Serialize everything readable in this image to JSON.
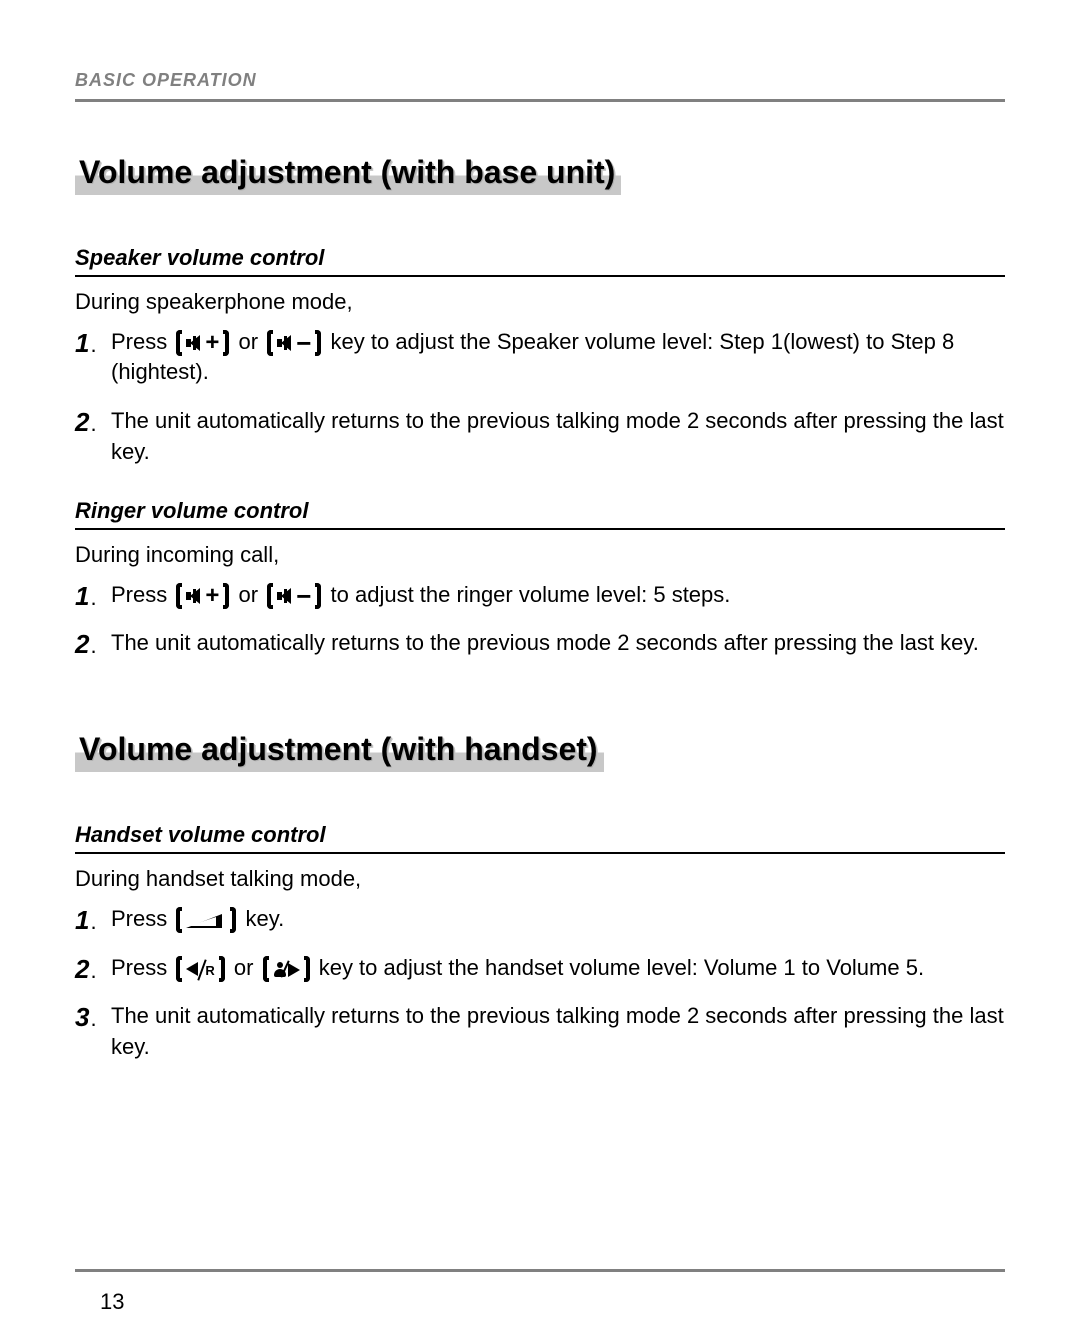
{
  "header": {
    "category": "BASIC OPERATION"
  },
  "page_number": "13",
  "colors": {
    "text": "#000000",
    "muted": "#808080",
    "title_shadow": "#c8c8c8",
    "background": "#ffffff"
  },
  "typography": {
    "header_fontsize": 18,
    "section_title_fontsize": 32,
    "subheading_fontsize": 22,
    "body_fontsize": 22,
    "step_number_fontsize": 26
  },
  "section1": {
    "title": "Volume adjustment (with base unit)",
    "sub1": {
      "heading": "Speaker volume control",
      "intro": "During speakerphone mode,",
      "step1_a": "Press",
      "step1_mid": "or",
      "step1_b": "key to adjust the Speaker volume level: Step 1(lowest) to Step 8 (hightest).",
      "step2": "The unit automatically returns to the previous talking mode 2 seconds after pressing the last key."
    },
    "sub2": {
      "heading": "Ringer volume control",
      "intro": "During incoming call,",
      "step1_a": "Press",
      "step1_mid": "or",
      "step1_b": "to adjust the ringer volume level: 5 steps.",
      "step2": "The unit automatically returns to the previous mode 2 seconds after pressing the last key."
    }
  },
  "section2": {
    "title": "Volume adjustment (with handset)",
    "sub1": {
      "heading": "Handset volume control",
      "intro": "During handset talking mode,",
      "step1_a": "Press",
      "step1_b": "key.",
      "step2_a": "Press",
      "step2_mid": "or",
      "step2_b": "key to adjust the handset volume level: Volume 1 to Volume 5.",
      "step3": "The unit automatically returns to the previous talking mode 2 seconds after pressing the last key."
    }
  },
  "icons": {
    "vol_up": "speaker-plus",
    "vol_down": "speaker-minus",
    "ramp": "volume-ramp",
    "left_r": "left-arrow-R",
    "phonebook_right": "phonebook-right-arrow"
  }
}
